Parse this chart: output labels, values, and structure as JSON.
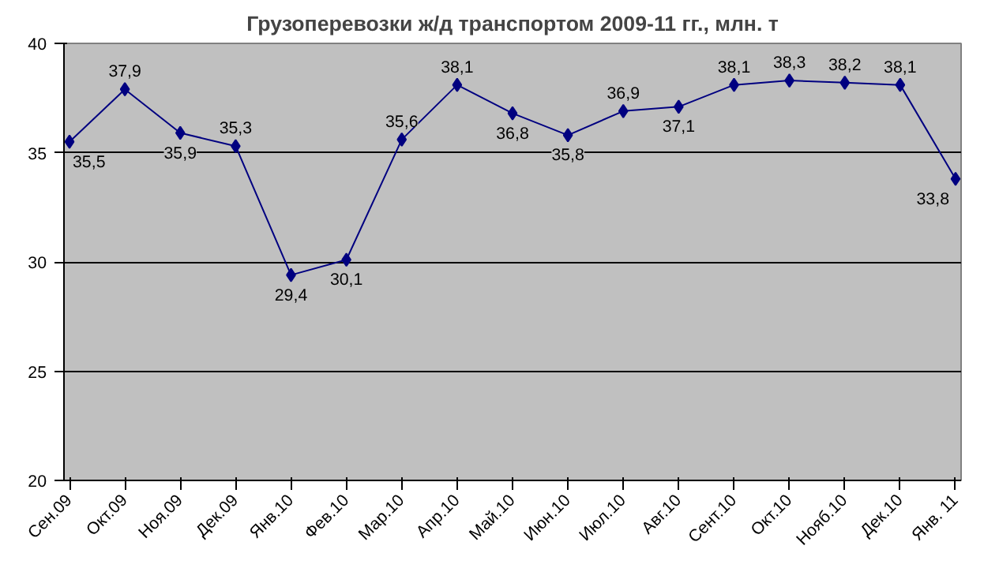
{
  "chart_data": {
    "type": "line",
    "title": "Грузоперевозки ж/д транспортом 2009-11 гг., млн. т",
    "categories": [
      "Сен.09",
      "Окт.09",
      "Ноя.09",
      "Дек.09",
      "Янв.10",
      "Фев.10",
      "Мар.10",
      "Апр.10",
      "Май.10",
      "Июн.10",
      "Июл.10",
      "Авг.10",
      "Сент.10",
      "Окт.10",
      "Нояб.10",
      "Дек.10",
      "Янв. 11"
    ],
    "series": [
      {
        "color": "#000080",
        "values": [
          35.5,
          37.9,
          35.9,
          35.3,
          29.4,
          30.1,
          35.6,
          38.1,
          36.8,
          35.8,
          36.9,
          37.1,
          38.1,
          38.3,
          38.2,
          38.1,
          33.8
        ],
        "value_labels": [
          "35,5",
          "37,9",
          "35,9",
          "35,3",
          "29,4",
          "30,1",
          "35,6",
          "38,1",
          "36,8",
          "35,8",
          "36,9",
          "37,1",
          "38,1",
          "38,3",
          "38,2",
          "38,1",
          "33,8"
        ]
      }
    ],
    "ylim": [
      20,
      40
    ],
    "yticks": [
      20,
      25,
      30,
      35,
      40
    ],
    "grid": "y",
    "marker": "diamond",
    "line_style": "solid"
  }
}
